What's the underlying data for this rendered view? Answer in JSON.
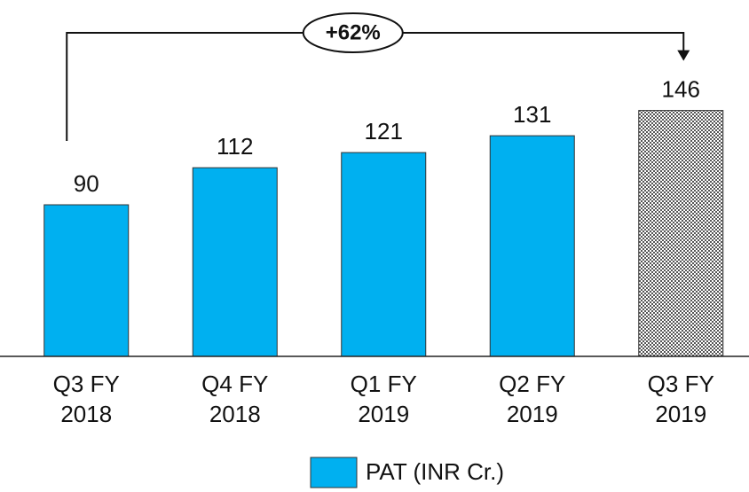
{
  "chart_data": {
    "type": "bar",
    "categories": [
      "Q3 FY 2018",
      "Q4 FY 2018",
      "Q1 FY 2019",
      "Q2 FY 2019",
      "Q3 FY 2019"
    ],
    "series": [
      {
        "name": "PAT (INR Cr.)",
        "color": "#00b0f0",
        "values": [
          90,
          112,
          121,
          131,
          146
        ]
      }
    ],
    "bar_fills": [
      "solid",
      "solid",
      "solid",
      "solid",
      "hatched"
    ],
    "ylim": [
      0,
      200
    ],
    "annotation": "+62%",
    "legend": "bottom"
  }
}
